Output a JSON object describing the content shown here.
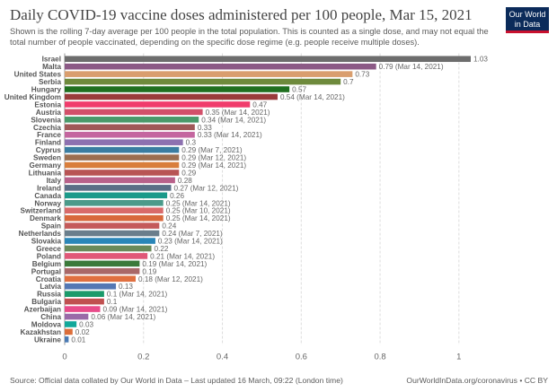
{
  "header": {
    "title": "Daily COVID-19 vaccine doses administered per 100 people, Mar 15, 2021",
    "subtitle": "Shown is the rolling 7-day average per 100 people in the total population. This is counted as a single dose, and may not equal the total number of people vaccinated, depending on the specific dose regime (e.g. people receive multiple doses).",
    "logo_line1": "Our World",
    "logo_line2": "in Data"
  },
  "footer": {
    "source": "Source: Official data collated by Our World in Data – Last updated 16 March, 09:22 (London time)",
    "credit": "OurWorldInData.org/coronavirus • CC BY"
  },
  "chart_data": {
    "type": "bar",
    "orientation": "horizontal",
    "xlim": [
      0,
      1.03
    ],
    "xticks": [
      "0",
      "0.2",
      "0.4",
      "0.6",
      "0.8",
      "1"
    ],
    "grid": "vertical dashed",
    "categories": [
      "Israel",
      "Malta",
      "United States",
      "Serbia",
      "Hungary",
      "United Kingdom",
      "Estonia",
      "Austria",
      "Slovenia",
      "Czechia",
      "France",
      "Finland",
      "Cyprus",
      "Sweden",
      "Germany",
      "Lithuania",
      "Italy",
      "Ireland",
      "Canada",
      "Norway",
      "Switzerland",
      "Denmark",
      "Spain",
      "Netherlands",
      "Slovakia",
      "Greece",
      "Poland",
      "Belgium",
      "Portugal",
      "Croatia",
      "Latvia",
      "Russia",
      "Bulgaria",
      "Azerbaijan",
      "China",
      "Moldova",
      "Kazakhstan",
      "Ukraine"
    ],
    "values": [
      1.03,
      0.79,
      0.73,
      0.7,
      0.57,
      0.54,
      0.47,
      0.35,
      0.34,
      0.33,
      0.33,
      0.3,
      0.29,
      0.29,
      0.29,
      0.29,
      0.28,
      0.27,
      0.26,
      0.25,
      0.25,
      0.25,
      0.24,
      0.24,
      0.23,
      0.22,
      0.21,
      0.19,
      0.19,
      0.18,
      0.13,
      0.1,
      0.1,
      0.09,
      0.06,
      0.03,
      0.02,
      0.01
    ],
    "value_labels": [
      "1.03",
      "0.79 (Mar 14, 2021)",
      "0.73",
      "0.7",
      "0.57",
      "0.54 (Mar 14, 2021)",
      "0.47",
      "0.35 (Mar 14, 2021)",
      "0.34 (Mar 14, 2021)",
      "0.33",
      "0.33 (Mar 14, 2021)",
      "0.3",
      "0.29 (Mar 7, 2021)",
      "0.29 (Mar 12, 2021)",
      "0.29 (Mar 14, 2021)",
      "0.29",
      "0.28",
      "0.27 (Mar 12, 2021)",
      "0.26",
      "0.25 (Mar 14, 2021)",
      "0.25 (Mar 10, 2021)",
      "0.25 (Mar 14, 2021)",
      "0.24",
      "0.24 (Mar 7, 2021)",
      "0.23 (Mar 14, 2021)",
      "0.22",
      "0.21 (Mar 14, 2021)",
      "0.19 (Mar 14, 2021)",
      "0.19",
      "0.18 (Mar 12, 2021)",
      "0.13",
      "0.1 (Mar 14, 2021)",
      "0.1",
      "0.09 (Mar 14, 2021)",
      "0.06 (Mar 14, 2021)",
      "0.03",
      "0.02",
      "0.01"
    ],
    "colors": [
      "#6d6d6d",
      "#8c5a86",
      "#d99e6e",
      "#6e8a3c",
      "#1f6f1f",
      "#9a3b3b",
      "#f03c6c",
      "#d2506a",
      "#4a9a6a",
      "#a05858",
      "#c4669f",
      "#8d71b0",
      "#3a7da1",
      "#9b6e50",
      "#d97e3c",
      "#b85454",
      "#b8618a",
      "#5a6e86",
      "#1a9a8a",
      "#4a9a8a",
      "#d86a6a",
      "#d8683c",
      "#c45a5a",
      "#6a7e8c",
      "#2a86b8",
      "#6a8a5a",
      "#e05878",
      "#3a7a3a",
      "#a96868",
      "#e07040",
      "#5478b4",
      "#1a9a6a",
      "#c05050",
      "#e84b8a",
      "#9a6aa8",
      "#12a89a",
      "#dc6e3a",
      "#4a7ab4"
    ]
  }
}
